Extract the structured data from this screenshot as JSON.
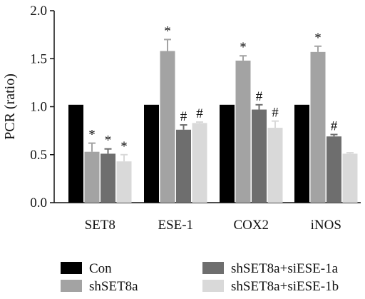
{
  "chart_data": {
    "type": "bar",
    "ylabel": "PCR (ratio)",
    "xlabel": "",
    "ylim": [
      0.0,
      2.0
    ],
    "yticks": [
      "0.0",
      "0.5",
      "1.0",
      "1.5",
      "2.0"
    ],
    "categories": [
      "SET8",
      "ESE-1",
      "COX2",
      "iNOS"
    ],
    "series": [
      {
        "name": "Con",
        "color": "#000000",
        "values": [
          1.02,
          1.02,
          1.02,
          1.02
        ],
        "errors": [
          0,
          0,
          0,
          0
        ],
        "annotations": [
          "",
          "",
          "",
          ""
        ]
      },
      {
        "name": "shSET8a",
        "color": "#a3a3a3",
        "values": [
          0.53,
          1.58,
          1.48,
          1.57
        ],
        "errors": [
          0.09,
          0.12,
          0.05,
          0.06
        ],
        "annotations": [
          "*",
          "*",
          "*",
          "*"
        ]
      },
      {
        "name": "shSET8a+siESE-1a",
        "color": "#6e6e6e",
        "values": [
          0.51,
          0.76,
          0.97,
          0.69
        ],
        "errors": [
          0.05,
          0.05,
          0.05,
          0.02
        ],
        "annotations": [
          "*",
          "#",
          "#",
          "#"
        ]
      },
      {
        "name": "shSET8a+siESE-1b",
        "color": "#d9d9d9",
        "values": [
          0.43,
          0.83,
          0.78,
          0.51
        ],
        "errors": [
          0.07,
          0.01,
          0.07,
          0.01
        ],
        "annotations": [
          "*",
          "#",
          "#",
          ""
        ]
      }
    ],
    "grid": false,
    "legend_position": "bottom"
  }
}
